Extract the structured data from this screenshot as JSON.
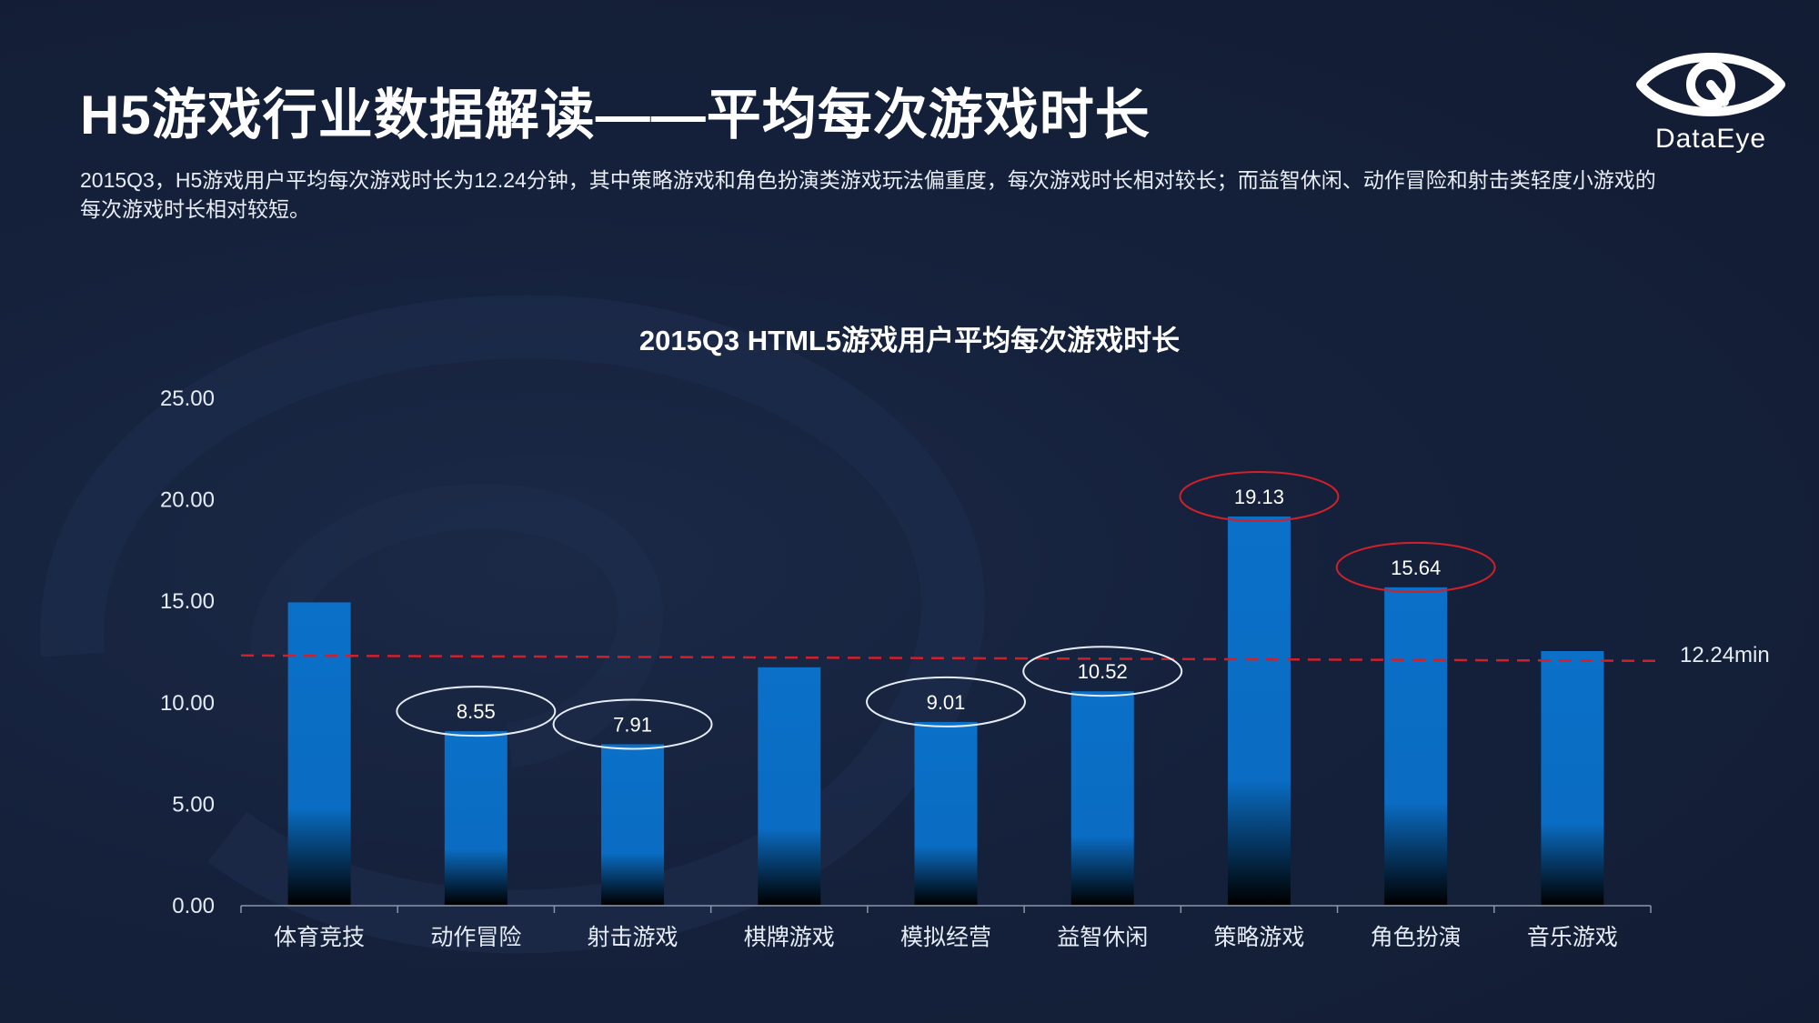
{
  "header": {
    "title": "H5游戏行业数据解读——平均每次游戏时长",
    "description": "2015Q3，H5游戏用户平均每次游戏时长为12.24分钟，其中策略游戏和角色扮演类游戏玩法偏重度，每次游戏时长相对较长；而益智休闲、动作冒险和射击类轻度小游戏的每次游戏时长相对较短。"
  },
  "logo": {
    "text": "DataEye",
    "icon": "eye-logo-icon"
  },
  "colors": {
    "bar": "#0a70c8",
    "highlight_long": "#d0202a",
    "highlight_short": "#e6ecf5",
    "average_line": "#d0202a",
    "axis_text": "#e6ecf5"
  },
  "chart_data": {
    "type": "bar",
    "title": "2015Q3 HTML5游戏用户平均每次游戏时长",
    "xlabel": "",
    "ylabel": "",
    "ylim": [
      0,
      25
    ],
    "yticks": [
      "0.00",
      "5.00",
      "10.00",
      "15.00",
      "20.00",
      "25.00"
    ],
    "grid": false,
    "categories": [
      "体育竞技",
      "动作冒险",
      "射击游戏",
      "棋牌游戏",
      "模拟经营",
      "益智休闲",
      "策略游戏",
      "角色扮演",
      "音乐游戏"
    ],
    "values": [
      14.9,
      8.55,
      7.91,
      11.7,
      9.01,
      10.52,
      19.13,
      15.64,
      12.5
    ],
    "data_labels": [
      "",
      "8.55",
      "7.91",
      "",
      "9.01",
      "10.52",
      "19.13",
      "15.64",
      ""
    ],
    "label_highlight": [
      "none",
      "short",
      "short",
      "none",
      "short",
      "short",
      "long",
      "long",
      "none"
    ],
    "average": {
      "value": 12.24,
      "label": "12.24min"
    }
  }
}
